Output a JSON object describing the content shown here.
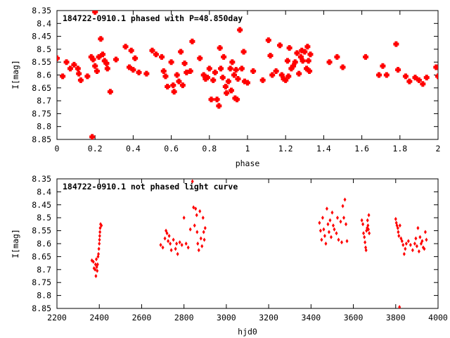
{
  "chart_data": [
    {
      "type": "scatter",
      "title": "184722-0910.1 phased with P=48.850day",
      "xlabel": "phase",
      "ylabel": "I[mag]",
      "xlim": [
        0,
        2
      ],
      "ylim": [
        8.35,
        8.85
      ],
      "y_inverted": true,
      "xticks": [
        "0",
        "0.2",
        "0.4",
        "0.6",
        "0.8",
        "1",
        "1.2",
        "1.4",
        "1.6",
        "1.8",
        "2"
      ],
      "yticks": [
        "8.35",
        "8.4",
        "8.45",
        "8.5",
        "8.55",
        "8.6",
        "8.65",
        "8.7",
        "8.75",
        "8.8",
        "8.85"
      ],
      "grid": false,
      "marker": "filled-star",
      "series": [
        {
          "color": "#ff0000",
          "points": [
            [
              0.0,
              8.535
            ],
            [
              0.03,
              8.605
            ],
            [
              0.05,
              8.55
            ],
            [
              0.07,
              8.575
            ],
            [
              0.09,
              8.56
            ],
            [
              0.11,
              8.575
            ],
            [
              0.115,
              8.595
            ],
            [
              0.125,
              8.62
            ],
            [
              0.16,
              8.605
            ],
            [
              0.18,
              8.53
            ],
            [
              0.19,
              8.54
            ],
            [
              0.2,
              8.565
            ],
            [
              0.21,
              8.585
            ],
            [
              0.23,
              8.46
            ],
            [
              0.22,
              8.53
            ],
            [
              0.24,
              8.52
            ],
            [
              0.25,
              8.545
            ],
            [
              0.26,
              8.555
            ],
            [
              0.265,
              8.575
            ],
            [
              0.28,
              8.665
            ],
            [
              0.2,
              8.355
            ],
            [
              0.185,
              8.84
            ],
            [
              0.31,
              8.54
            ],
            [
              0.36,
              8.49
            ],
            [
              0.38,
              8.57
            ],
            [
              0.39,
              8.505
            ],
            [
              0.4,
              8.58
            ],
            [
              0.41,
              8.535
            ],
            [
              0.43,
              8.59
            ],
            [
              0.47,
              8.595
            ],
            [
              0.5,
              8.505
            ],
            [
              0.52,
              8.52
            ],
            [
              0.55,
              8.53
            ],
            [
              0.56,
              8.585
            ],
            [
              0.57,
              8.605
            ],
            [
              0.58,
              8.645
            ],
            [
              0.6,
              8.55
            ],
            [
              0.61,
              8.64
            ],
            [
              0.615,
              8.665
            ],
            [
              0.63,
              8.6
            ],
            [
              0.64,
              8.625
            ],
            [
              0.65,
              8.51
            ],
            [
              0.66,
              8.64
            ],
            [
              0.67,
              8.555
            ],
            [
              0.68,
              8.59
            ],
            [
              0.7,
              8.585
            ],
            [
              0.71,
              8.47
            ],
            [
              0.75,
              8.535
            ],
            [
              0.77,
              8.6
            ],
            [
              0.78,
              8.615
            ],
            [
              0.79,
              8.61
            ],
            [
              0.8,
              8.575
            ],
            [
              0.81,
              8.695
            ],
            [
              0.82,
              8.62
            ],
            [
              0.83,
              8.59
            ],
            [
              0.84,
              8.695
            ],
            [
              0.85,
              8.72
            ],
            [
              0.855,
              8.495
            ],
            [
              0.86,
              8.575
            ],
            [
              0.87,
              8.61
            ],
            [
              0.875,
              8.53
            ],
            [
              0.885,
              8.645
            ],
            [
              0.89,
              8.67
            ],
            [
              0.9,
              8.625
            ],
            [
              0.91,
              8.575
            ],
            [
              0.915,
              8.66
            ],
            [
              0.92,
              8.55
            ],
            [
              0.93,
              8.6
            ],
            [
              0.935,
              8.69
            ],
            [
              0.94,
              8.58
            ],
            [
              0.945,
              8.695
            ],
            [
              0.95,
              8.615
            ],
            [
              0.96,
              8.425
            ],
            [
              0.97,
              8.575
            ],
            [
              0.98,
              8.51
            ],
            [
              0.985,
              8.625
            ],
            [
              1.0,
              8.63
            ],
            [
              1.03,
              8.585
            ],
            [
              1.08,
              8.62
            ],
            [
              1.11,
              8.465
            ],
            [
              1.12,
              8.525
            ],
            [
              1.13,
              8.6
            ],
            [
              1.15,
              8.585
            ],
            [
              1.17,
              8.485
            ],
            [
              1.18,
              8.6
            ],
            [
              1.19,
              8.615
            ],
            [
              1.2,
              8.62
            ],
            [
              1.21,
              8.545
            ],
            [
              1.215,
              8.605
            ],
            [
              1.22,
              8.495
            ],
            [
              1.23,
              8.575
            ],
            [
              1.24,
              8.565
            ],
            [
              1.25,
              8.55
            ],
            [
              1.26,
              8.515
            ],
            [
              1.27,
              8.595
            ],
            [
              1.28,
              8.53
            ],
            [
              1.285,
              8.505
            ],
            [
              1.29,
              8.545
            ],
            [
              1.3,
              8.51
            ],
            [
              1.31,
              8.575
            ],
            [
              1.315,
              8.49
            ],
            [
              1.32,
              8.545
            ],
            [
              1.325,
              8.585
            ],
            [
              1.33,
              8.52
            ],
            [
              1.43,
              8.55
            ],
            [
              1.47,
              8.53
            ],
            [
              1.5,
              8.57
            ],
            [
              1.62,
              8.53
            ],
            [
              1.69,
              8.6
            ],
            [
              1.71,
              8.565
            ],
            [
              1.73,
              8.6
            ],
            [
              1.78,
              8.48
            ],
            [
              1.79,
              8.58
            ],
            [
              1.83,
              8.605
            ],
            [
              1.85,
              8.625
            ],
            [
              1.88,
              8.61
            ],
            [
              1.9,
              8.62
            ],
            [
              1.92,
              8.635
            ],
            [
              1.94,
              8.61
            ],
            [
              1.99,
              8.57
            ],
            [
              2.0,
              8.605
            ]
          ]
        }
      ]
    },
    {
      "type": "scatter",
      "title": "184722-0910.1 not phased light curve",
      "xlabel": "hjd0",
      "ylabel": "I[mag]",
      "xlim": [
        2200,
        4000
      ],
      "ylim": [
        8.35,
        8.85
      ],
      "y_inverted": true,
      "xticks": [
        "2200",
        "2400",
        "2600",
        "2800",
        "3000",
        "3200",
        "3400",
        "3600",
        "3800",
        "4000"
      ],
      "yticks": [
        "8.35",
        "8.4",
        "8.45",
        "8.5",
        "8.55",
        "8.6",
        "8.65",
        "8.7",
        "8.75",
        "8.8",
        "8.85"
      ],
      "grid": false,
      "marker": "diamond",
      "series": [
        {
          "color": "#ff0000",
          "points": [
            [
              2365,
              8.665
            ],
            [
              2372,
              8.67
            ],
            [
              2375,
              8.695
            ],
            [
              2380,
              8.7
            ],
            [
              2382,
              8.68
            ],
            [
              2384,
              8.725
            ],
            [
              2386,
              8.66
            ],
            [
              2388,
              8.69
            ],
            [
              2390,
              8.705
            ],
            [
              2392,
              8.68
            ],
            [
              2394,
              8.65
            ],
            [
              2396,
              8.64
            ],
            [
              2398,
              8.62
            ],
            [
              2400,
              8.6
            ],
            [
              2401,
              8.585
            ],
            [
              2402,
              8.57
            ],
            [
              2403,
              8.555
            ],
            [
              2404,
              8.54
            ],
            [
              2406,
              8.525
            ],
            [
              2410,
              8.53
            ],
            [
              2690,
              8.605
            ],
            [
              2700,
              8.615
            ],
            [
              2710,
              8.58
            ],
            [
              2715,
              8.55
            ],
            [
              2720,
              8.56
            ],
            [
              2725,
              8.59
            ],
            [
              2730,
              8.57
            ],
            [
              2735,
              8.6
            ],
            [
              2740,
              8.625
            ],
            [
              2750,
              8.585
            ],
            [
              2760,
              8.62
            ],
            [
              2765,
              8.6
            ],
            [
              2770,
              8.64
            ],
            [
              2780,
              8.595
            ],
            [
              2790,
              8.605
            ],
            [
              2800,
              8.5
            ],
            [
              2810,
              8.6
            ],
            [
              2820,
              8.615
            ],
            [
              2830,
              8.545
            ],
            [
              2840,
              8.36
            ],
            [
              2845,
              8.46
            ],
            [
              2850,
              8.53
            ],
            [
              2855,
              8.465
            ],
            [
              2860,
              8.49
            ],
            [
              2862,
              8.555
            ],
            [
              2865,
              8.6
            ],
            [
              2870,
              8.625
            ],
            [
              2875,
              8.475
            ],
            [
              2880,
              8.58
            ],
            [
              2885,
              8.61
            ],
            [
              2890,
              8.5
            ],
            [
              2893,
              8.555
            ],
            [
              2896,
              8.585
            ],
            [
              2900,
              8.54
            ],
            [
              3440,
              8.52
            ],
            [
              3445,
              8.55
            ],
            [
              3450,
              8.585
            ],
            [
              3455,
              8.5
            ],
            [
              3460,
              8.545
            ],
            [
              3465,
              8.57
            ],
            [
              3470,
              8.6
            ],
            [
              3475,
              8.465
            ],
            [
              3480,
              8.525
            ],
            [
              3485,
              8.555
            ],
            [
              3490,
              8.51
            ],
            [
              3495,
              8.575
            ],
            [
              3500,
              8.48
            ],
            [
              3505,
              8.53
            ],
            [
              3510,
              8.545
            ],
            [
              3520,
              8.56
            ],
            [
              3525,
              8.5
            ],
            [
              3530,
              8.585
            ],
            [
              3540,
              8.515
            ],
            [
              3545,
              8.595
            ],
            [
              3550,
              8.455
            ],
            [
              3555,
              8.5
            ],
            [
              3560,
              8.43
            ],
            [
              3565,
              8.525
            ],
            [
              3570,
              8.59
            ],
            [
              3640,
              8.51
            ],
            [
              3645,
              8.525
            ],
            [
              3648,
              8.56
            ],
            [
              3652,
              8.575
            ],
            [
              3655,
              8.595
            ],
            [
              3658,
              8.615
            ],
            [
              3660,
              8.625
            ],
            [
              3662,
              8.55
            ],
            [
              3665,
              8.54
            ],
            [
              3667,
              8.51
            ],
            [
              3669,
              8.53
            ],
            [
              3671,
              8.545
            ],
            [
              3673,
              8.49
            ],
            [
              3675,
              8.56
            ],
            [
              3800,
              8.505
            ],
            [
              3803,
              8.52
            ],
            [
              3806,
              8.53
            ],
            [
              3810,
              8.54
            ],
            [
              3812,
              8.555
            ],
            [
              3815,
              8.57
            ],
            [
              3818,
              8.845
            ],
            [
              3820,
              8.53
            ],
            [
              3825,
              8.58
            ],
            [
              3830,
              8.59
            ],
            [
              3835,
              8.605
            ],
            [
              3840,
              8.64
            ],
            [
              3845,
              8.62
            ],
            [
              3850,
              8.6
            ],
            [
              3860,
              8.59
            ],
            [
              3870,
              8.605
            ],
            [
              3880,
              8.625
            ],
            [
              3890,
              8.6
            ],
            [
              3895,
              8.58
            ],
            [
              3900,
              8.61
            ],
            [
              3905,
              8.54
            ],
            [
              3910,
              8.63
            ],
            [
              3915,
              8.575
            ],
            [
              3920,
              8.6
            ],
            [
              3925,
              8.59
            ],
            [
              3930,
              8.615
            ],
            [
              3935,
              8.62
            ],
            [
              3940,
              8.555
            ],
            [
              3945,
              8.585
            ]
          ]
        }
      ]
    }
  ]
}
